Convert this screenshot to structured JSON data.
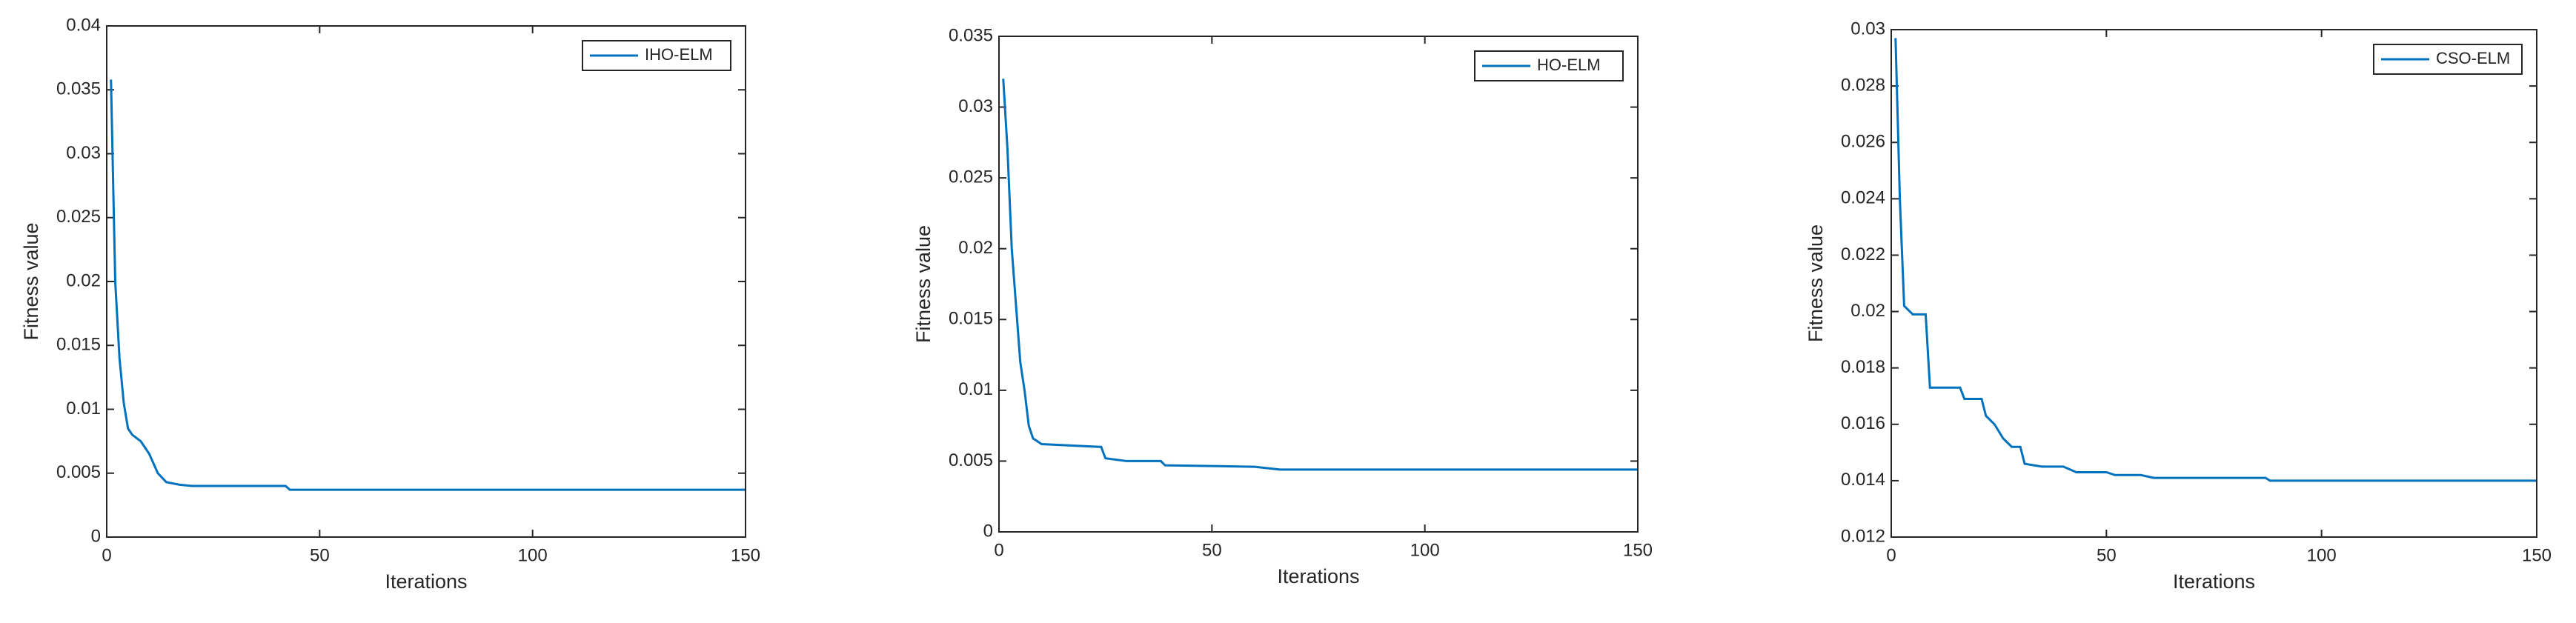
{
  "chart_data": [
    {
      "type": "line",
      "xlabel": "Iterations",
      "ylabel": "Fitness value",
      "legend": "top-right",
      "grid": false,
      "xlim": [
        0,
        150
      ],
      "xticks": [
        0,
        50,
        100,
        150
      ],
      "ylim": [
        0,
        0.04
      ],
      "yticks": [
        0,
        0.005,
        0.01,
        0.015,
        0.02,
        0.025,
        0.03,
        0.035,
        0.04
      ],
      "x": [
        1,
        2,
        3,
        4,
        5,
        6,
        8,
        10,
        12,
        14,
        17,
        20,
        42,
        43,
        150
      ],
      "series": [
        {
          "name": "IHO-ELM",
          "color": "#0072BD",
          "values": [
            0.0358,
            0.02,
            0.014,
            0.0105,
            0.0085,
            0.008,
            0.0075,
            0.0065,
            0.005,
            0.0043,
            0.0041,
            0.004,
            0.004,
            0.0037,
            0.0037
          ]
        }
      ]
    },
    {
      "type": "line",
      "xlabel": "Iterations",
      "ylabel": "Fitness value",
      "legend": "top-right",
      "grid": false,
      "xlim": [
        0,
        150
      ],
      "xticks": [
        0,
        50,
        100,
        150
      ],
      "ylim": [
        0,
        0.035
      ],
      "yticks": [
        0,
        0.005,
        0.01,
        0.015,
        0.02,
        0.025,
        0.03,
        0.035
      ],
      "x": [
        1,
        2,
        3,
        5,
        6,
        7,
        8,
        10,
        24,
        25,
        30,
        38,
        39,
        60,
        66,
        150
      ],
      "series": [
        {
          "name": "HO-ELM",
          "color": "#0072BD",
          "values": [
            0.032,
            0.027,
            0.02,
            0.012,
            0.01,
            0.0075,
            0.0066,
            0.0062,
            0.006,
            0.0052,
            0.005,
            0.005,
            0.0047,
            0.0046,
            0.0044,
            0.0044
          ]
        }
      ]
    },
    {
      "type": "line",
      "xlabel": "Iterations",
      "ylabel": "Fitness value",
      "legend": "top-right",
      "grid": false,
      "xlim": [
        0,
        150
      ],
      "xticks": [
        0,
        50,
        100,
        150
      ],
      "ylim": [
        0.012,
        0.03
      ],
      "yticks": [
        0.012,
        0.014,
        0.016,
        0.018,
        0.02,
        0.022,
        0.024,
        0.026,
        0.028,
        0.03
      ],
      "x": [
        1,
        2,
        3,
        5,
        8,
        9,
        16,
        17,
        21,
        22,
        24,
        26,
        28,
        30,
        31,
        35,
        40,
        43,
        50,
        52,
        58,
        61,
        87,
        88,
        150
      ],
      "series": [
        {
          "name": "CSO-ELM",
          "color": "#0072BD",
          "values": [
            0.0297,
            0.024,
            0.0202,
            0.0199,
            0.0199,
            0.0173,
            0.0173,
            0.0169,
            0.0169,
            0.0163,
            0.016,
            0.0155,
            0.0152,
            0.0152,
            0.0146,
            0.0145,
            0.0145,
            0.0143,
            0.0143,
            0.0142,
            0.0142,
            0.0141,
            0.0141,
            0.014,
            0.014
          ]
        }
      ]
    }
  ]
}
